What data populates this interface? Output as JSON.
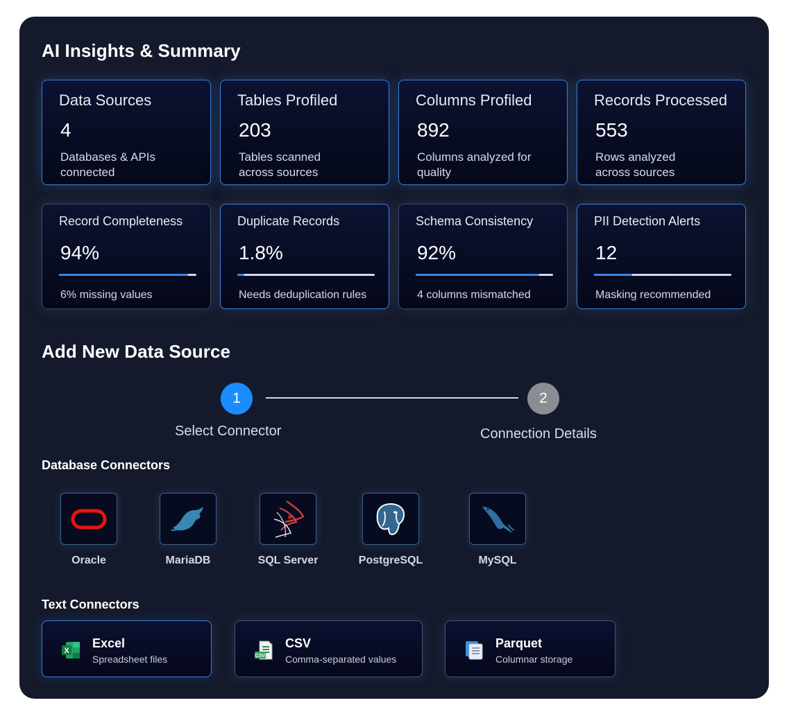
{
  "summary": {
    "title": "AI Insights & Summary",
    "stats": [
      {
        "title": "Data Sources",
        "value": "4",
        "desc": "Databases & APIs connected"
      },
      {
        "title": "Tables Profiled",
        "value": "203",
        "desc": "Tables scanned across sources"
      },
      {
        "title": "Columns Profiled",
        "value": "892",
        "desc": "Columns analyzed for quality"
      },
      {
        "title": "Records Processed",
        "value": "553",
        "desc": "Rows analyzed across sources"
      }
    ],
    "metrics": [
      {
        "title": "Record Completeness",
        "value": "94%",
        "progress": 0.94,
        "desc": "6% missing values"
      },
      {
        "title": "Duplicate Records",
        "value": "1.8%",
        "progress": 0.05,
        "desc": "Needs deduplication rules"
      },
      {
        "title": "Schema Consistency",
        "value": "92%",
        "progress": 0.9,
        "desc": "4 columns mismatched"
      },
      {
        "title": "PII Detection Alerts",
        "value": "12",
        "progress": 0.28,
        "desc": "Masking recommended"
      }
    ]
  },
  "add_source": {
    "title": "Add New Data Source",
    "steps": [
      {
        "number": "1",
        "label": "Select Connector",
        "active": true
      },
      {
        "number": "2",
        "label": "Connection Details",
        "active": false
      }
    ],
    "database_heading": "Database Connectors",
    "databases": [
      {
        "name": "Oracle",
        "icon": "oracle-icon"
      },
      {
        "name": "MariaDB",
        "icon": "mariadb-icon"
      },
      {
        "name": "SQL Server",
        "icon": "sql-server-icon"
      },
      {
        "name": "PostgreSQL",
        "icon": "postgresql-icon"
      },
      {
        "name": "MySQL",
        "icon": "mysql-icon"
      }
    ],
    "text_heading": "Text Connectors",
    "text_connectors": [
      {
        "name": "Excel",
        "desc": "Spreadsheet files",
        "icon": "excel-icon"
      },
      {
        "name": "CSV",
        "desc": "Comma-separated values",
        "icon": "csv-icon"
      },
      {
        "name": "Parquet",
        "desc": "Columnar storage",
        "icon": "parquet-icon"
      }
    ]
  },
  "colors": {
    "panel_bg": "#141a2b",
    "accent_blue": "#1a8cff",
    "step_inactive": "#8a8d94",
    "card_border": "#3b7fd6"
  }
}
